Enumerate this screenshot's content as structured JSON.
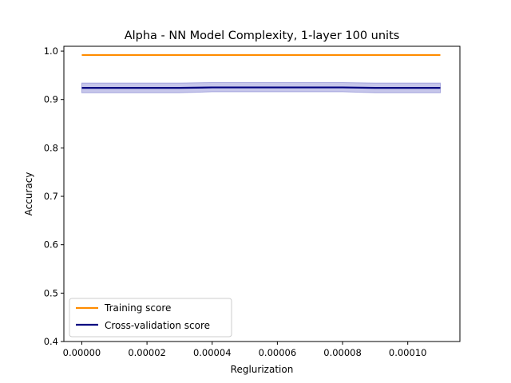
{
  "chart_data": {
    "type": "line",
    "title": "Alpha - NN Model Complexity, 1-layer 100 units",
    "xlabel": "Reglurization",
    "ylabel": "Accuracy",
    "xlim": [
      -5.5e-06,
      0.000116
    ],
    "ylim": [
      0.4,
      1.01
    ],
    "x_ticks": [
      0,
      2e-05,
      4e-05,
      6e-05,
      8e-05,
      0.0001
    ],
    "x_tick_labels": [
      "0.00000",
      "0.00002",
      "0.00004",
      "0.00006",
      "0.00008",
      "0.00010"
    ],
    "y_ticks": [
      0.4,
      0.5,
      0.6,
      0.7,
      0.8,
      0.9,
      1.0
    ],
    "y_tick_labels": [
      "0.4",
      "0.5",
      "0.6",
      "0.7",
      "0.8",
      "0.9",
      "1.0"
    ],
    "x": [
      0,
      1e-05,
      2e-05,
      3e-05,
      4e-05,
      5e-05,
      6e-05,
      7e-05,
      8e-05,
      9e-05,
      0.0001,
      0.00011
    ],
    "series": [
      {
        "name": "Training score",
        "color": "#ff8c00",
        "values": [
          0.992,
          0.992,
          0.992,
          0.992,
          0.992,
          0.992,
          0.992,
          0.992,
          0.992,
          0.992,
          0.992,
          0.992
        ]
      },
      {
        "name": "Cross-validation score",
        "color": "#000080",
        "band_color": "#8080d0",
        "values": [
          0.924,
          0.924,
          0.924,
          0.924,
          0.925,
          0.925,
          0.925,
          0.925,
          0.925,
          0.924,
          0.924,
          0.924
        ],
        "band_lower": [
          0.914,
          0.914,
          0.914,
          0.914,
          0.916,
          0.916,
          0.916,
          0.916,
          0.916,
          0.914,
          0.914,
          0.914
        ],
        "band_upper": [
          0.934,
          0.934,
          0.934,
          0.934,
          0.935,
          0.935,
          0.935,
          0.935,
          0.935,
          0.934,
          0.934,
          0.934
        ]
      }
    ],
    "legend_position": "lower-left",
    "grid": false
  }
}
